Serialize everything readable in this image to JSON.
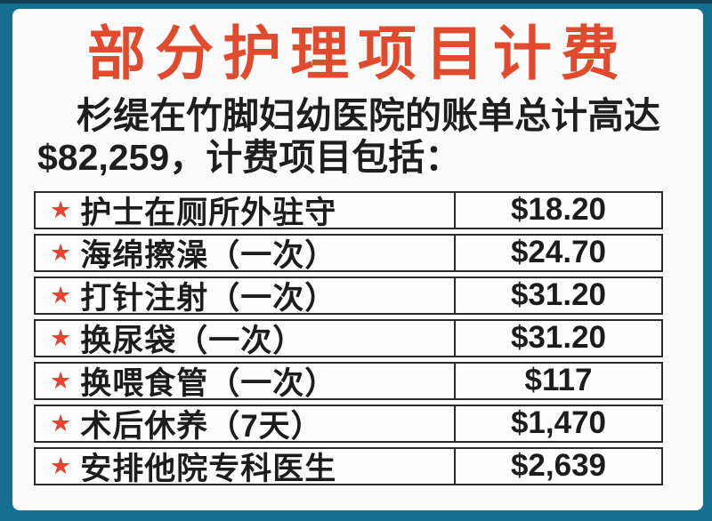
{
  "header": {
    "title": "部分护理项目计费"
  },
  "intro": {
    "line1": "杉缇在竹脚妇幼医院的账单总计高达",
    "line2": "$82,259，计费项目包括：",
    "total_amount": "$82,259"
  },
  "icons": {
    "bullet_star": "★"
  },
  "colors": {
    "frame_teal": "#156f8e",
    "card_background": "#fcfcfc",
    "title_red": "#e04b2d",
    "star_red": "#e8432c",
    "text_dark": "#1e1e1e",
    "table_border": "#2a2a2a"
  },
  "chart_data": {
    "type": "table",
    "title": "部分护理项目计费",
    "rows": [
      {
        "item": "护士在厕所外驻守",
        "fee": "$18.20"
      },
      {
        "item": "海绵擦澡（一次）",
        "fee": "$24.70"
      },
      {
        "item": "打针注射（一次）",
        "fee": "$31.20"
      },
      {
        "item": "换尿袋（一次）",
        "fee": "$31.20"
      },
      {
        "item": "换喂食管（一次）",
        "fee": "$117"
      },
      {
        "item": "术后休养（7天）",
        "fee": "$1,470"
      },
      {
        "item": "安排他院专科医生",
        "fee": "$2,639"
      }
    ]
  }
}
